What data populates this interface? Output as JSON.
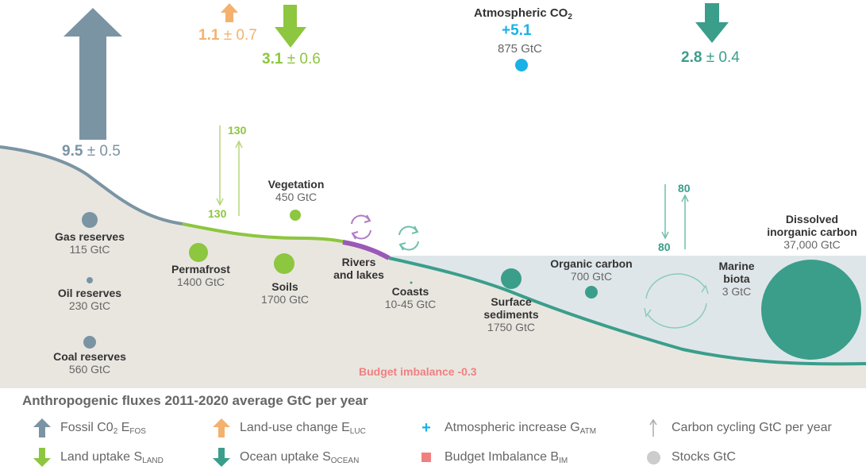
{
  "fluxes": {
    "fossil": {
      "value": "9.5",
      "unc": "± 0.5",
      "color": "#7a94a3"
    },
    "land_use": {
      "value": "1.1",
      "unc": "± 0.7",
      "color": "#f4b16e"
    },
    "land_uptake": {
      "value": "3.1",
      "unc": "± 0.6",
      "color": "#8dc63f"
    },
    "ocean_uptake": {
      "value": "2.8",
      "unc": "± 0.4",
      "color": "#3a9e8b"
    },
    "atmosphere": {
      "title": "Atmospheric CO",
      "title_sub": "2",
      "increase": "+5.1",
      "stock": "875 GtC",
      "color": "#1ab1e6"
    }
  },
  "land_cycle": {
    "down": "130",
    "up": "130"
  },
  "ocean_cycle": {
    "down": "80",
    "up": "80"
  },
  "stocks": {
    "gas": {
      "name": "Gas reserves",
      "value": "115 GtC"
    },
    "oil": {
      "name": "Oil reserves",
      "value": "230 GtC"
    },
    "coal": {
      "name": "Coal reserves",
      "value": "560 GtC"
    },
    "permafrost": {
      "name": "Permafrost",
      "value": "1400 GtC"
    },
    "vegetation": {
      "name": "Vegetation",
      "value": "450 GtC"
    },
    "soils": {
      "name": "Soils",
      "value": "1700 GtC"
    },
    "rivers": {
      "name_1": "Rivers",
      "name_2": "and lakes"
    },
    "coasts": {
      "name": "Coasts",
      "value": "10-45 GtC"
    },
    "sediments": {
      "name_1": "Surface",
      "name_2": "sediments",
      "value": "1750 GtC"
    },
    "organic": {
      "name": "Organic carbon",
      "value": "700 GtC"
    },
    "marine_biota": {
      "name_1": "Marine",
      "name_2": "biota",
      "value": "3 GtC"
    },
    "dic": {
      "name_1": "Dissolved",
      "name_2": "inorganic carbon",
      "value": "37,000 GtC"
    }
  },
  "budget_imbalance": {
    "text": "Budget imbalance -0.3",
    "color": "#f08080"
  },
  "legend": {
    "title": "Anthropogenic fluxes 2011-2020 average GtC per year",
    "fossil": {
      "label": "Fossil C0",
      "sub1": "2",
      "mid": " E",
      "sub2": "FOS"
    },
    "land_use": {
      "label": "Land-use change E",
      "sub": "LUC"
    },
    "atm": {
      "label": "Atmospheric increase G",
      "sub": "ATM"
    },
    "cycling": {
      "label": "Carbon cycling GtC per year"
    },
    "land_uptake": {
      "label": "Land uptake S",
      "sub": "LAND"
    },
    "ocean_uptake": {
      "label": "Ocean uptake S",
      "sub": "OCEAN"
    },
    "budget": {
      "label": "Budget Imbalance B",
      "sub": "IM"
    },
    "stocks": {
      "label": "Stocks GtC"
    }
  }
}
